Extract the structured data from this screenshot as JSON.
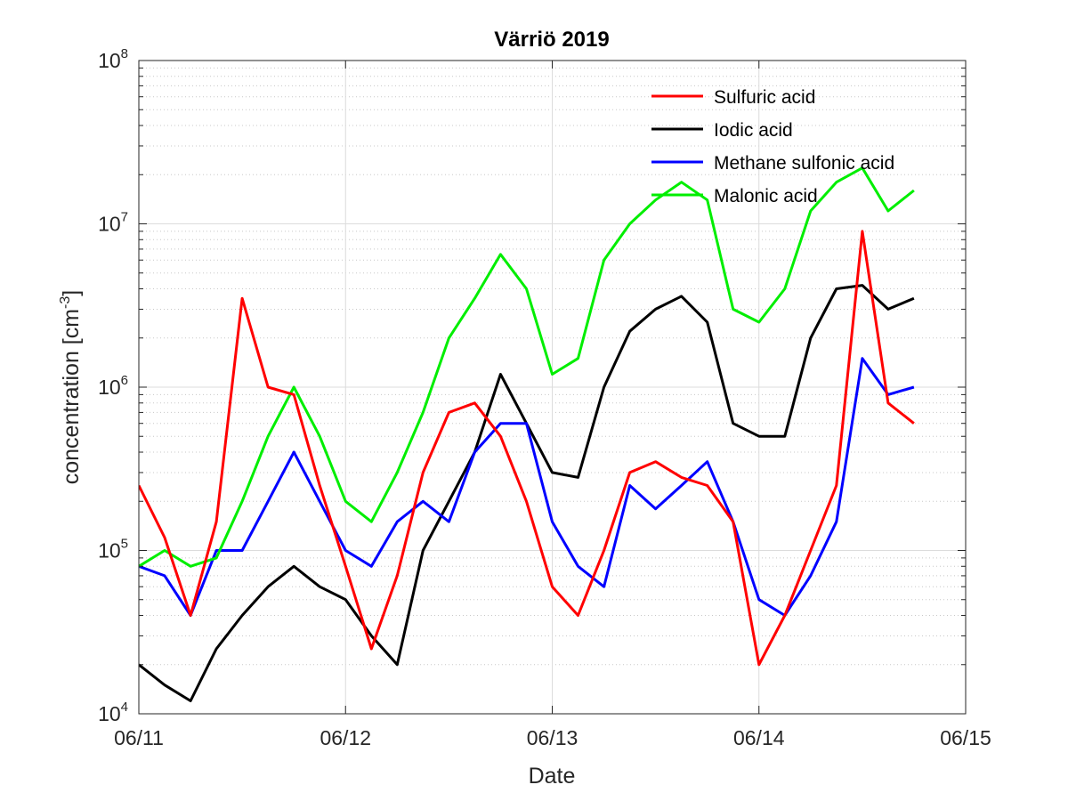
{
  "chart_data": {
    "type": "line",
    "title": "Värriö 2019",
    "xlabel": "Date",
    "ylabel": "concentration [cm",
    "ylabel_sup": "-3",
    "ylabel_suffix": "]",
    "yscale": "log",
    "ylim": [
      10000,
      100000000
    ],
    "xlim": [
      "06/11",
      "06/15"
    ],
    "x_tick_labels": [
      "06/11",
      "06/12",
      "06/13",
      "06/14",
      "06/15"
    ],
    "y_tick_labels": [
      {
        "base": "10",
        "exp": "4"
      },
      {
        "base": "10",
        "exp": "5"
      },
      {
        "base": "10",
        "exp": "6"
      },
      {
        "base": "10",
        "exp": "7"
      },
      {
        "base": "10",
        "exp": "8"
      }
    ],
    "grid": true,
    "legend_position": "top-right",
    "x": [
      "06/11 00:00",
      "06/11 03:00",
      "06/11 06:00",
      "06/11 09:00",
      "06/11 12:00",
      "06/11 15:00",
      "06/11 18:00",
      "06/11 21:00",
      "06/12 00:00",
      "06/12 03:00",
      "06/12 06:00",
      "06/12 09:00",
      "06/12 12:00",
      "06/12 15:00",
      "06/12 18:00",
      "06/12 21:00",
      "06/13 00:00",
      "06/13 03:00",
      "06/13 06:00",
      "06/13 09:00",
      "06/13 12:00",
      "06/13 15:00",
      "06/13 18:00",
      "06/13 21:00",
      "06/14 00:00",
      "06/14 03:00",
      "06/14 06:00",
      "06/14 09:00",
      "06/14 12:00",
      "06/14 15:00",
      "06/14 18:00"
    ],
    "series": [
      {
        "name": "Sulfuric acid",
        "color": "#ff0000",
        "values": [
          250000,
          120000,
          40000,
          150000,
          3500000,
          1000000,
          900000,
          250000,
          80000,
          25000,
          70000,
          300000,
          700000,
          800000,
          500000,
          200000,
          60000,
          40000,
          100000,
          300000,
          350000,
          280000,
          250000,
          150000,
          20000,
          40000,
          100000,
          250000,
          9000000,
          800000,
          600000
        ]
      },
      {
        "name": "Iodic acid",
        "color": "#000000",
        "values": [
          20000,
          15000,
          12000,
          25000,
          40000,
          60000,
          80000,
          60000,
          50000,
          30000,
          20000,
          100000,
          200000,
          400000,
          1200000,
          600000,
          300000,
          280000,
          1000000,
          2200000,
          3000000,
          3600000,
          2500000,
          600000,
          500000,
          500000,
          2000000,
          4000000,
          4200000,
          3000000,
          3500000
        ]
      },
      {
        "name": "Methane sulfonic acid",
        "color": "#0000ff",
        "values": [
          80000,
          70000,
          40000,
          100000,
          100000,
          200000,
          400000,
          200000,
          100000,
          80000,
          150000,
          200000,
          150000,
          400000,
          600000,
          600000,
          150000,
          80000,
          60000,
          250000,
          180000,
          250000,
          350000,
          150000,
          50000,
          40000,
          70000,
          150000,
          1500000,
          900000,
          1000000
        ]
      },
      {
        "name": "Malonic acid",
        "color": "#00ee00",
        "values": [
          80000,
          100000,
          80000,
          90000,
          200000,
          500000,
          1000000,
          500000,
          200000,
          150000,
          300000,
          700000,
          2000000,
          3500000,
          6500000,
          4000000,
          1200000,
          1500000,
          6000000,
          10000000,
          14000000,
          18000000,
          14000000,
          3000000,
          2500000,
          4000000,
          12000000,
          18000000,
          22000000,
          12000000,
          16000000
        ]
      }
    ]
  }
}
